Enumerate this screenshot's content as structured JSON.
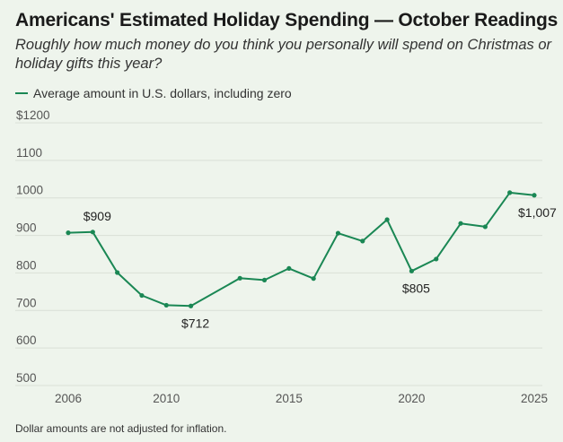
{
  "header": {
    "title": "Americans' Estimated Holiday Spending — October Readings",
    "subtitle": "Roughly how much money do you think you personally will spend on Christmas or holiday gifts this year?"
  },
  "legend": {
    "label": "Average amount in U.S. dollars, including zero"
  },
  "footnote": "Dollar amounts are not adjusted for inflation.",
  "colors": {
    "line": "#1a8754",
    "grid": "#d9dfd6",
    "background": "#eef4ec"
  },
  "chart_data": {
    "type": "line",
    "title": "Americans' Estimated Holiday Spending — October Readings",
    "xlabel": "",
    "ylabel": "",
    "xlim": [
      2006,
      2025
    ],
    "ylim": [
      500,
      1200
    ],
    "xticks": [
      2006,
      2010,
      2015,
      2020,
      2025
    ],
    "xtick_labels": [
      "2006",
      "2010",
      "2015",
      "2020",
      "2025"
    ],
    "yticks": [
      500,
      600,
      700,
      800,
      900,
      1000,
      1100,
      1200
    ],
    "ytick_labels": [
      "500",
      "600",
      "700",
      "800",
      "900",
      "1000",
      "1100",
      "$1200"
    ],
    "grid": true,
    "series": [
      {
        "name": "Average amount in U.S. dollars, including zero",
        "x": [
          2006,
          2007,
          2008,
          2009,
          2010,
          2011,
          2013,
          2014,
          2015,
          2016,
          2017,
          2018,
          2019,
          2020,
          2021,
          2022,
          2023,
          2024,
          2025
        ],
        "values": [
          907,
          909,
          801,
          740,
          714,
          712,
          786,
          781,
          812,
          785,
          906,
          885,
          942,
          805,
          837,
          932,
          923,
          1014,
          1007
        ]
      }
    ],
    "annotations": [
      {
        "x": 2007,
        "y": 909,
        "text": "$909",
        "position": "above"
      },
      {
        "x": 2011,
        "y": 712,
        "text": "$712",
        "position": "below"
      },
      {
        "x": 2020,
        "y": 805,
        "text": "$805",
        "position": "below"
      },
      {
        "x": 2025,
        "y": 1007,
        "text": "$1,007",
        "position": "below"
      }
    ]
  }
}
